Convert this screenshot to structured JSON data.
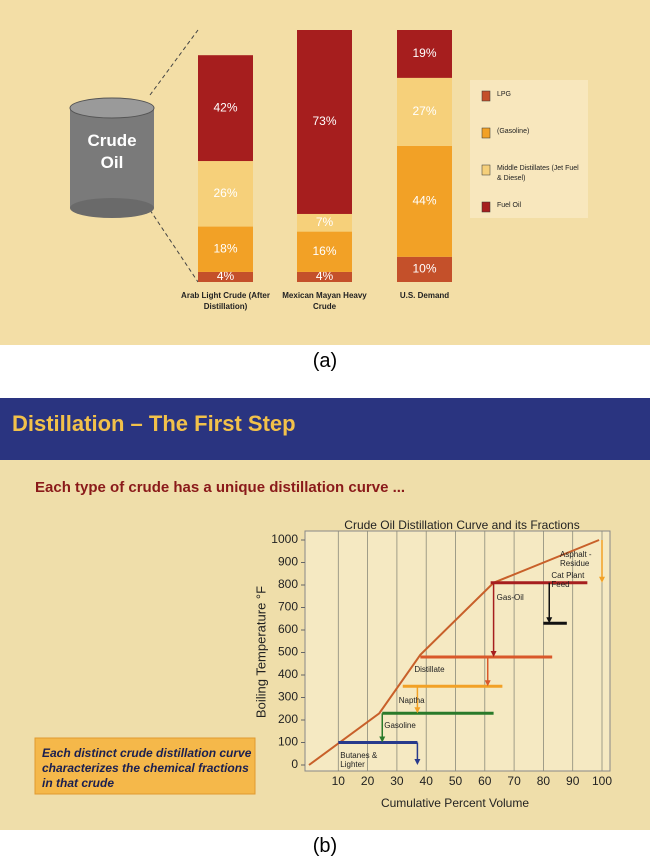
{
  "chart_data": [
    {
      "type": "bar",
      "stacked": true,
      "caption": "(a)",
      "image_label": "Crude Oil",
      "categories": [
        "Arab Light Crude (After Distillation)",
        "Mexican Mayan Heavy Crude",
        "U.S. Demand"
      ],
      "series": [
        {
          "name": "LPG",
          "color": "#c4502a",
          "values": [
            4,
            4,
            10
          ],
          "value_labels": [
            "4%",
            "4%",
            "10%"
          ]
        },
        {
          "name": "(Gasoline)",
          "color": "#f2a126",
          "values": [
            18,
            16,
            44
          ],
          "value_labels": [
            "18%",
            "16%",
            "44%"
          ]
        },
        {
          "name": "Middle Distillates (Jet Fuel & Diesel)",
          "color": "#f6d07a",
          "values": [
            26,
            7,
            27
          ],
          "value_labels": [
            "26%",
            "7%",
            "27%"
          ]
        },
        {
          "name": "Fuel Oil",
          "color": "#a61e1e",
          "values": [
            42,
            73,
            19
          ],
          "value_labels": [
            "42%",
            "73%",
            "19%"
          ]
        }
      ]
    },
    {
      "type": "line",
      "caption": "(b)",
      "slide_title": "Distillation – The First Step",
      "subtitle": "Each type of crude has a unique distillation curve ...",
      "note": "Each distinct crude distillation curve characterizes the chemical fractions in that crude",
      "title": "Crude Oil Distillation Curve and its Fractions",
      "x_label": "Cumulative Percent Volume",
      "y_label": "Boiling Temperature °F",
      "x": [
        0,
        24,
        38,
        63,
        99
      ],
      "values": [
        0,
        230,
        490,
        810,
        1000
      ],
      "color": "#c8602a",
      "xlim": [
        0,
        100
      ],
      "ylim": [
        0,
        1000
      ],
      "xticks": [
        10,
        20,
        30,
        40,
        50,
        60,
        70,
        80,
        90,
        100
      ],
      "yticks": [
        0,
        100,
        200,
        300,
        400,
        500,
        600,
        700,
        800,
        900,
        1000
      ],
      "grid": true,
      "fractions": [
        {
          "name": "Butanes & Lighter",
          "color": "#283a8c",
          "y": 100,
          "x": [
            10,
            37
          ],
          "arrow_x": 37,
          "arrow_y": [
            100,
            0
          ]
        },
        {
          "name": "Gasoline",
          "color": "#2a7a2a",
          "y": 230,
          "x": [
            25,
            63
          ],
          "arrow_x": 25,
          "arrow_y": [
            230,
            100
          ]
        },
        {
          "name": "Naptha",
          "color": "#f2a126",
          "y": 350,
          "x": [
            32,
            66
          ],
          "arrow_x": 37,
          "arrow_y": [
            350,
            230
          ]
        },
        {
          "name": "Distillate",
          "color": "#d9582a",
          "y": 480,
          "x": [
            38,
            83
          ],
          "arrow_x": 61,
          "arrow_y": [
            480,
            350
          ]
        },
        {
          "name": "Gas-Oil",
          "color": "#a61e1e",
          "y": 810,
          "x": [
            62,
            95
          ],
          "arrow_x": 63,
          "arrow_y": [
            810,
            480
          ]
        },
        {
          "name": "Asphalt - Residue",
          "color": "#f2a126",
          "arrow_x": 100,
          "arrow_y": [
            1000,
            810
          ]
        },
        {
          "name": "Cat Plant Feed",
          "color": "#111111",
          "arrow_x": 82,
          "arrow_y": [
            810,
            630
          ],
          "x": [
            80,
            88
          ],
          "y": 630
        }
      ]
    }
  ]
}
